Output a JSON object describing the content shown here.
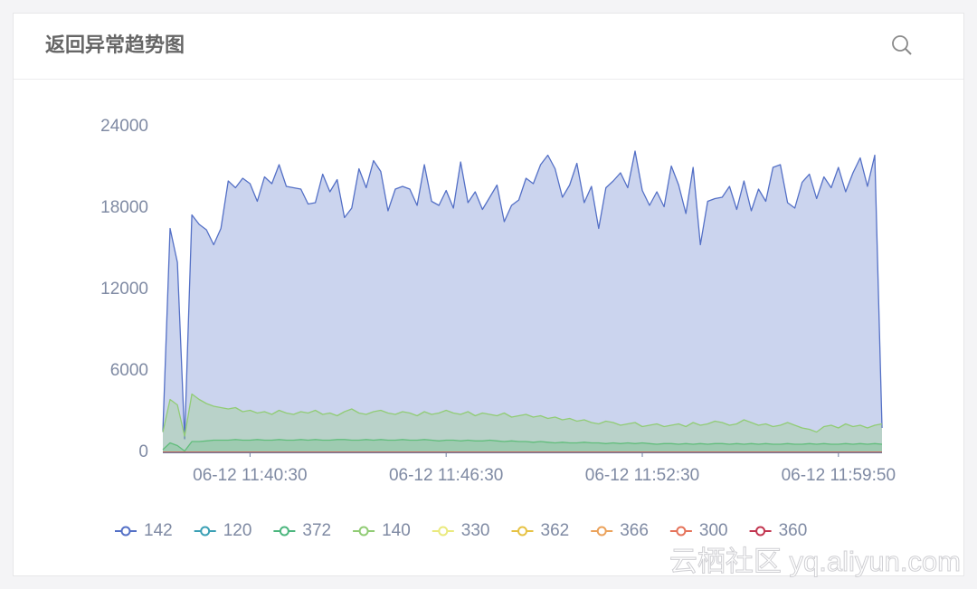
{
  "chart_data": {
    "type": "area",
    "title": "返回异常趋势图",
    "watermark": "云栖社区 yq.aliyun.com",
    "categories": [
      null,
      null,
      null,
      null,
      null,
      null,
      null,
      null,
      null,
      null,
      null,
      null,
      "06-12 11:40:30",
      null,
      null,
      null,
      null,
      null,
      null,
      null,
      null,
      null,
      null,
      null,
      null,
      null,
      null,
      null,
      null,
      null,
      null,
      null,
      null,
      null,
      null,
      null,
      null,
      null,
      null,
      "06-12 11:46:30",
      null,
      null,
      null,
      null,
      null,
      null,
      null,
      null,
      null,
      null,
      null,
      null,
      null,
      null,
      null,
      null,
      null,
      null,
      null,
      null,
      null,
      null,
      null,
      null,
      null,
      null,
      "06-12 11:52:30",
      null,
      null,
      null,
      null,
      null,
      null,
      null,
      null,
      null,
      null,
      null,
      null,
      null,
      null,
      null,
      null,
      null,
      null,
      null,
      null,
      null,
      null,
      null,
      null,
      null,
      null,
      "06-12 11:59:50",
      null,
      null,
      null,
      null,
      null,
      null
    ],
    "ylim": [
      0,
      24000
    ],
    "yticks": [
      0,
      6000,
      12000,
      18000,
      24000
    ],
    "grid": false,
    "series": [
      {
        "name": "142",
        "color": "#5470c6",
        "values": [
          1500,
          16500,
          14000,
          1000,
          17500,
          16800,
          16400,
          15300,
          16500,
          20000,
          19500,
          20200,
          19800,
          18500,
          20300,
          19800,
          21200,
          19600,
          19500,
          19400,
          18300,
          18400,
          20500,
          19200,
          20100,
          17300,
          18000,
          20900,
          19500,
          21500,
          20700,
          17800,
          19400,
          19600,
          19400,
          18200,
          21200,
          18500,
          18200,
          19300,
          18000,
          21400,
          18400,
          19200,
          17900,
          18800,
          19700,
          17000,
          18200,
          18600,
          20200,
          19800,
          21200,
          21900,
          20900,
          18800,
          19700,
          21300,
          18400,
          19600,
          16500,
          19500,
          20000,
          20600,
          19500,
          22200,
          19300,
          18200,
          19200,
          18100,
          21100,
          19700,
          17600,
          21000,
          15300,
          18500,
          18700,
          18800,
          19600,
          17900,
          20000,
          17800,
          19400,
          18500,
          21000,
          21200,
          18400,
          18000,
          19900,
          20500,
          18700,
          20300,
          19500,
          21000,
          19200,
          20600,
          21700,
          19600,
          21900,
          1800
        ]
      },
      {
        "name": "120",
        "color": "#3ba0b5",
        "values": [
          0,
          0,
          0,
          0,
          0,
          0,
          0,
          0,
          0,
          0,
          0,
          0,
          0,
          0,
          0,
          0,
          0,
          0,
          0,
          0,
          0,
          0,
          0,
          0,
          0,
          0,
          0,
          0,
          0,
          0,
          0,
          0,
          0,
          0,
          0,
          0,
          0,
          0,
          0,
          0,
          0,
          0,
          0,
          0,
          0,
          0,
          0,
          0,
          0,
          0,
          0,
          0,
          0,
          0,
          0,
          0,
          0,
          0,
          0,
          0,
          0,
          0,
          0,
          0,
          0,
          0,
          0,
          0,
          0,
          0,
          0,
          0,
          0,
          0,
          0,
          0,
          0,
          0,
          0,
          0,
          0,
          0,
          0,
          0,
          0,
          0,
          0,
          0,
          0,
          0,
          0,
          0,
          0,
          0,
          0,
          0,
          0,
          0,
          0,
          0
        ]
      },
      {
        "name": "372",
        "color": "#4cb67e",
        "values": [
          200,
          700,
          500,
          100,
          800,
          800,
          850,
          900,
          900,
          900,
          950,
          900,
          900,
          950,
          900,
          900,
          950,
          900,
          900,
          950,
          900,
          950,
          900,
          900,
          950,
          950,
          900,
          900,
          950,
          900,
          950,
          900,
          900,
          950,
          900,
          900,
          950,
          900,
          850,
          900,
          900,
          850,
          900,
          850,
          850,
          900,
          850,
          800,
          850,
          800,
          800,
          750,
          800,
          750,
          700,
          750,
          700,
          700,
          750,
          700,
          700,
          650,
          700,
          650,
          700,
          650,
          700,
          650,
          600,
          650,
          650,
          600,
          650,
          600,
          650,
          600,
          650,
          650,
          600,
          650,
          600,
          650,
          600,
          650,
          600,
          600,
          650,
          600,
          600,
          650,
          600,
          650,
          600,
          600,
          650,
          600,
          650,
          600,
          650,
          600
        ]
      },
      {
        "name": "140",
        "color": "#91cc75",
        "values": [
          1500,
          3900,
          3500,
          1200,
          4300,
          3900,
          3600,
          3400,
          3300,
          3200,
          3300,
          3000,
          3100,
          2900,
          3000,
          2800,
          3100,
          2900,
          2800,
          3000,
          2900,
          3100,
          2800,
          2900,
          2700,
          3000,
          3200,
          2900,
          2800,
          3000,
          3100,
          2900,
          2800,
          3000,
          2900,
          2700,
          3000,
          2800,
          2900,
          3100,
          2900,
          2800,
          3000,
          2700,
          2900,
          2800,
          2700,
          2900,
          2600,
          2700,
          2800,
          2600,
          2700,
          2500,
          2600,
          2400,
          2500,
          2300,
          2400,
          2200,
          2100,
          2300,
          2200,
          2000,
          2100,
          2200,
          1900,
          2000,
          2100,
          1900,
          2000,
          2100,
          1900,
          2200,
          2000,
          2100,
          2300,
          2200,
          2000,
          2100,
          2400,
          2200,
          2000,
          2100,
          1900,
          2000,
          2200,
          2000,
          1800,
          1700,
          1500,
          1900,
          2000,
          1800,
          2100,
          1900,
          2000,
          1800,
          2000,
          2100
        ]
      },
      {
        "name": "330",
        "color": "#eaea7e",
        "values": [
          0,
          0,
          0,
          0,
          0,
          0,
          0,
          0,
          0,
          0,
          0,
          0,
          0,
          0,
          0,
          0,
          0,
          0,
          0,
          0,
          0,
          0,
          0,
          0,
          0,
          0,
          0,
          0,
          0,
          0,
          0,
          0,
          0,
          0,
          0,
          0,
          0,
          0,
          0,
          0,
          0,
          0,
          0,
          0,
          0,
          0,
          0,
          0,
          0,
          0,
          0,
          0,
          0,
          0,
          0,
          0,
          0,
          0,
          0,
          0,
          0,
          0,
          0,
          0,
          0,
          0,
          0,
          0,
          0,
          0,
          0,
          0,
          0,
          0,
          0,
          0,
          0,
          0,
          0,
          0,
          0,
          0,
          0,
          0,
          0,
          0,
          0,
          0,
          0,
          0,
          0,
          0,
          0,
          0,
          0,
          0,
          0,
          0,
          0,
          0
        ]
      },
      {
        "name": "362",
        "color": "#e6c244",
        "values": [
          0,
          0,
          0,
          0,
          0,
          0,
          0,
          0,
          0,
          0,
          0,
          0,
          0,
          0,
          0,
          0,
          0,
          0,
          0,
          0,
          0,
          0,
          0,
          0,
          0,
          0,
          0,
          0,
          0,
          0,
          0,
          0,
          0,
          0,
          0,
          0,
          0,
          0,
          0,
          0,
          0,
          0,
          0,
          0,
          0,
          0,
          0,
          0,
          0,
          0,
          0,
          0,
          0,
          0,
          0,
          0,
          0,
          0,
          0,
          0,
          0,
          0,
          0,
          0,
          0,
          0,
          0,
          0,
          0,
          0,
          0,
          0,
          0,
          0,
          0,
          0,
          0,
          0,
          0,
          0,
          0,
          0,
          0,
          0,
          0,
          0,
          0,
          0,
          0,
          0,
          0,
          0,
          0,
          0,
          0,
          0,
          0,
          0,
          0,
          0
        ]
      },
      {
        "name": "366",
        "color": "#eba25b",
        "values": [
          0,
          0,
          0,
          0,
          0,
          0,
          0,
          0,
          0,
          0,
          0,
          0,
          0,
          0,
          0,
          0,
          0,
          0,
          0,
          0,
          0,
          0,
          0,
          0,
          0,
          0,
          0,
          0,
          0,
          0,
          0,
          0,
          0,
          0,
          0,
          0,
          0,
          0,
          0,
          0,
          0,
          0,
          0,
          0,
          0,
          0,
          0,
          0,
          0,
          0,
          0,
          0,
          0,
          0,
          0,
          0,
          0,
          0,
          0,
          0,
          0,
          0,
          0,
          0,
          0,
          0,
          0,
          0,
          0,
          0,
          0,
          0,
          0,
          0,
          0,
          0,
          0,
          0,
          0,
          0,
          0,
          0,
          0,
          0,
          0,
          0,
          0,
          0,
          0,
          0,
          0,
          0,
          0,
          0,
          0,
          0,
          0,
          0,
          0,
          0
        ]
      },
      {
        "name": "300",
        "color": "#e5735a",
        "values": [
          0,
          0,
          0,
          0,
          0,
          0,
          0,
          0,
          0,
          0,
          0,
          0,
          0,
          0,
          0,
          0,
          0,
          0,
          0,
          0,
          0,
          0,
          0,
          0,
          0,
          0,
          0,
          0,
          0,
          0,
          0,
          0,
          0,
          0,
          0,
          0,
          0,
          0,
          0,
          0,
          0,
          0,
          0,
          0,
          0,
          0,
          0,
          0,
          0,
          0,
          0,
          0,
          0,
          0,
          0,
          0,
          0,
          0,
          0,
          0,
          0,
          0,
          0,
          0,
          0,
          0,
          0,
          0,
          0,
          0,
          0,
          0,
          0,
          0,
          0,
          0,
          0,
          0,
          0,
          0,
          0,
          0,
          0,
          0,
          0,
          0,
          0,
          0,
          0,
          0,
          0,
          0,
          0,
          0,
          0,
          0,
          0,
          0,
          0,
          0
        ]
      },
      {
        "name": "360",
        "color": "#c23650",
        "values": [
          0,
          0,
          0,
          0,
          0,
          0,
          0,
          0,
          0,
          0,
          0,
          0,
          0,
          0,
          0,
          0,
          0,
          0,
          0,
          0,
          0,
          0,
          0,
          0,
          0,
          0,
          0,
          0,
          0,
          0,
          0,
          0,
          0,
          0,
          0,
          0,
          0,
          0,
          0,
          0,
          0,
          0,
          0,
          0,
          0,
          0,
          0,
          0,
          0,
          0,
          0,
          0,
          0,
          0,
          0,
          0,
          0,
          0,
          0,
          0,
          0,
          0,
          0,
          0,
          0,
          0,
          0,
          0,
          0,
          0,
          0,
          0,
          0,
          0,
          0,
          0,
          0,
          0,
          0,
          0,
          0,
          0,
          0,
          0,
          0,
          0,
          0,
          0,
          0,
          0,
          0,
          0,
          0,
          0,
          0,
          0,
          0,
          0,
          0,
          0
        ]
      }
    ]
  }
}
